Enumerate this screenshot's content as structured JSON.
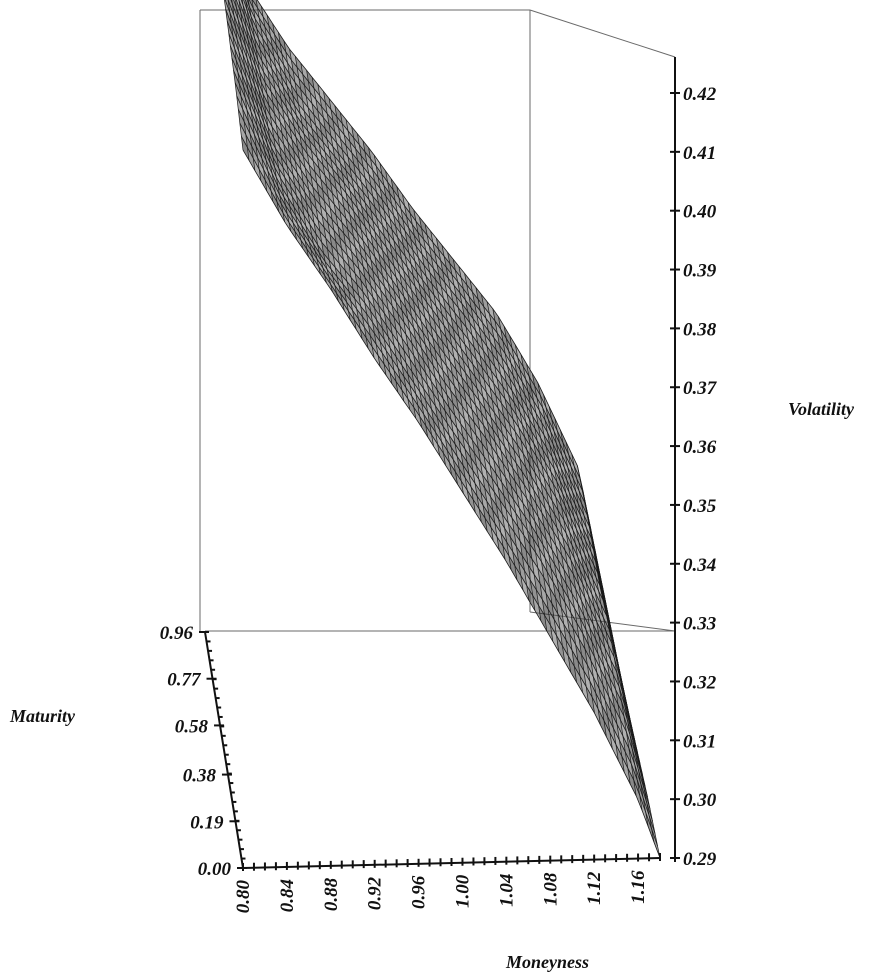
{
  "chart_data": {
    "type": "surface",
    "title": "",
    "axes": {
      "x": {
        "label": "Moneyness",
        "ticks": [
          "0.80",
          "0.84",
          "0.88",
          "0.92",
          "0.96",
          "1.00",
          "1.04",
          "1.08",
          "1.12",
          "1.16"
        ],
        "range": [
          0.8,
          1.18
        ]
      },
      "y": {
        "label": "Maturity",
        "ticks": [
          "0.00",
          "0.19",
          "0.38",
          "0.58",
          "0.77",
          "0.96"
        ],
        "range": [
          0.0,
          0.96
        ]
      },
      "z": {
        "label": "Volatility",
        "ticks": [
          "0.29",
          "0.30",
          "0.31",
          "0.32",
          "0.33",
          "0.34",
          "0.35",
          "0.36",
          "0.37",
          "0.38",
          "0.39",
          "0.40",
          "0.41",
          "0.42"
        ],
        "range": [
          0.29,
          0.42
        ]
      }
    },
    "surface": {
      "moneyness": [
        0.8,
        0.84,
        0.88,
        0.92,
        0.96,
        1.0,
        1.04,
        1.08,
        1.12,
        1.16,
        1.18
      ],
      "maturity": [
        0.0,
        0.19,
        0.38,
        0.58,
        0.77,
        0.96
      ],
      "volatility": [
        [
          0.412,
          0.399,
          0.388,
          0.376,
          0.365,
          0.353,
          0.341,
          0.328,
          0.315,
          0.3,
          0.29
        ],
        [
          0.415,
          0.398,
          0.386,
          0.377,
          0.366,
          0.355,
          0.344,
          0.333,
          0.32,
          0.305,
          0.292
        ],
        [
          0.417,
          0.398,
          0.387,
          0.378,
          0.368,
          0.357,
          0.347,
          0.336,
          0.324,
          0.309,
          0.293
        ],
        [
          0.419,
          0.399,
          0.388,
          0.379,
          0.369,
          0.359,
          0.349,
          0.339,
          0.327,
          0.312,
          0.294
        ],
        [
          0.421,
          0.4,
          0.388,
          0.379,
          0.37,
          0.36,
          0.351,
          0.341,
          0.329,
          0.314,
          0.295
        ],
        [
          0.422,
          0.4,
          0.389,
          0.38,
          0.371,
          0.361,
          0.352,
          0.343,
          0.331,
          0.316,
          0.296
        ]
      ]
    },
    "grid": false,
    "colors": {
      "mesh": "#1a1a1a",
      "frame": "#6a6a6a",
      "background": "#ffffff"
    }
  }
}
